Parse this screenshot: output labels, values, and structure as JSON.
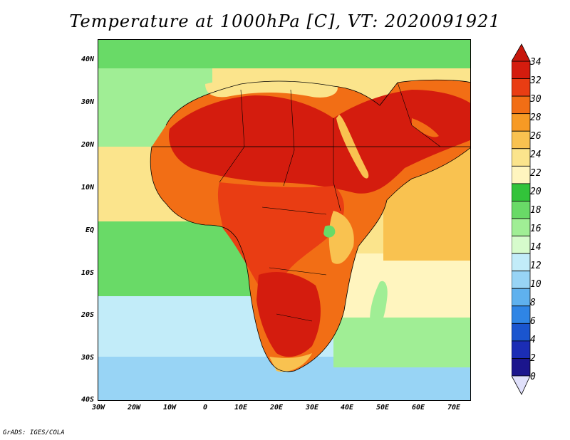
{
  "title": "Temperature at 1000hPa [C], VT: 2020091921",
  "credit": "GrADS: IGES/COLA",
  "lat_labels": [
    "40N",
    "30N",
    "20N",
    "10N",
    "EQ",
    "10S",
    "20S",
    "30S",
    "40S"
  ],
  "lon_labels": [
    "30W",
    "20W",
    "10W",
    "0",
    "10E",
    "20E",
    "30E",
    "40E",
    "50E",
    "60E",
    "70E"
  ],
  "colorbar": {
    "labels": [
      "34",
      "32",
      "30",
      "28",
      "26",
      "24",
      "22",
      "20",
      "18",
      "16",
      "14",
      "12",
      "10",
      "8",
      "6",
      "4",
      "2",
      "0"
    ],
    "colors": [
      "#d41c0e",
      "#e93d13",
      "#f26e15",
      "#f79a24",
      "#f9c250",
      "#fbe48c",
      "#fff5bf",
      "#32c33a",
      "#69da67",
      "#a0ee95",
      "#d6fbcc",
      "#c2ecf9",
      "#98d4f5",
      "#5fb1ee",
      "#2f85e5",
      "#1a55cf",
      "#1b2db5",
      "#1b158d"
    ],
    "end_colors": {
      "top": "#c7170c",
      "bottom": "#e0e0fb"
    }
  },
  "map_palette": {
    "sea_cool": "#98d4f5",
    "sea_light": "#c2ecf9",
    "sea_green": "#69da67",
    "sea_dark_green": "#32c33a",
    "warm_pale": "#fff5bf",
    "warm_yellow": "#fbe48c",
    "warm_orange": "#f9c250",
    "hot_orange": "#f26e15",
    "hot_red": "#e93d13",
    "hottest": "#d41c0e"
  }
}
